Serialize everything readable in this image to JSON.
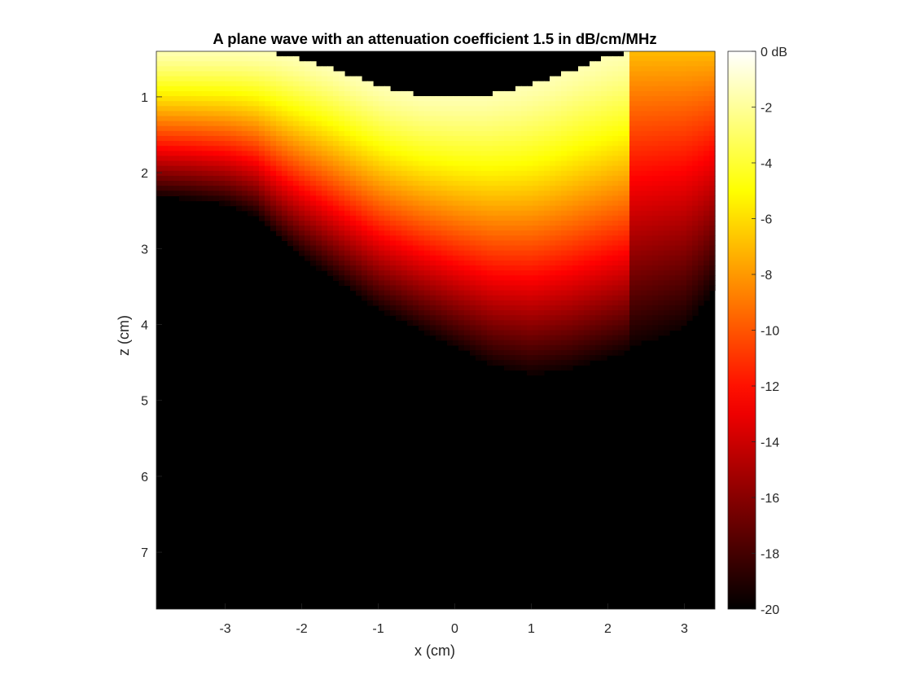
{
  "chart_data": {
    "type": "heatmap",
    "title": "A plane wave with an attenuation coefficient 1.5 in dB/cm/MHz",
    "xlabel": "x (cm)",
    "ylabel": "z (cm)",
    "xlim": [
      -3.9,
      3.4
    ],
    "ylim": [
      0.4,
      7.75
    ],
    "y_reversed": true,
    "x_ticks": [
      -3,
      -2,
      -1,
      0,
      1,
      2,
      3
    ],
    "x_tick_labels": [
      "-3",
      "-2",
      "-1",
      "0",
      "1",
      "2",
      "3"
    ],
    "y_ticks": [
      1,
      2,
      3,
      4,
      5,
      6,
      7
    ],
    "y_tick_labels": [
      "1",
      "2",
      "3",
      "4",
      "5",
      "6",
      "7"
    ],
    "colormap": "hot",
    "colorbar": {
      "range": [
        -20,
        0
      ],
      "ticks": [
        0,
        -2,
        -4,
        -6,
        -8,
        -10,
        -12,
        -14,
        -16,
        -18,
        -20
      ],
      "tick_labels": [
        "0 dB",
        "-2",
        "-4",
        "-6",
        "-8",
        "-10",
        "-12",
        "-14",
        "-16",
        "-18",
        "-20"
      ]
    },
    "grid": false,
    "source_boundary": {
      "x": [
        -3.9,
        -3.6,
        -3.2,
        -2.8,
        -2.4,
        -2.0,
        -1.6,
        -1.2,
        -0.8,
        -0.4,
        0.0,
        0.4,
        0.8,
        1.2,
        1.6,
        2.0,
        2.3
      ],
      "z": [
        0.4,
        0.4,
        0.4,
        0.4,
        0.42,
        0.5,
        0.62,
        0.78,
        0.92,
        0.99,
        1.0,
        0.98,
        0.9,
        0.78,
        0.62,
        0.48,
        0.4
      ]
    },
    "field_extent": {
      "x": [
        -3.9,
        -3.5,
        -3.0,
        -2.6,
        -2.3,
        -2.0,
        -1.5,
        -1.0,
        -0.5,
        0.0,
        0.5,
        1.0,
        1.5,
        2.0,
        2.5,
        3.0,
        3.2,
        3.4
      ],
      "z": [
        2.35,
        2.38,
        2.45,
        2.6,
        2.9,
        3.15,
        3.5,
        3.85,
        4.1,
        4.35,
        4.6,
        4.72,
        4.65,
        4.5,
        4.35,
        4.15,
        3.9,
        3.6
      ]
    }
  }
}
